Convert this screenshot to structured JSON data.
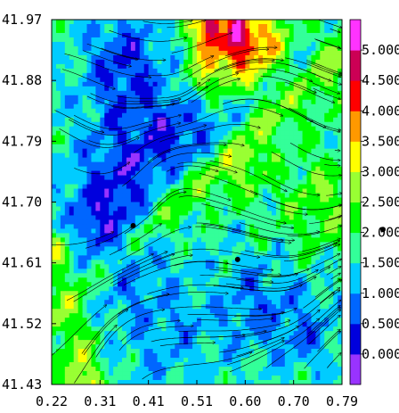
{
  "chart_data": {
    "type": "heatmap",
    "overlay": "streamlines",
    "title": "",
    "xlabel": "",
    "ylabel": "",
    "xlim": [
      0.22,
      0.79
    ],
    "ylim": [
      41.43,
      41.97
    ],
    "x_ticks": [
      "0.22",
      "0.31",
      "0.41",
      "0.51",
      "0.60",
      "0.70",
      "0.79"
    ],
    "y_ticks": [
      "41.97",
      "41.88",
      "41.79",
      "41.70",
      "41.61",
      "41.52",
      "41.43"
    ],
    "colorbar": {
      "range": [
        -0.5,
        5.5
      ],
      "labels": [
        "0.000",
        "0.500",
        "1.000",
        "1.500",
        "2.000",
        "2.500",
        "3.000",
        "3.500",
        "4.000",
        "4.500",
        "5.000"
      ],
      "colors": [
        "#9933ff",
        "#0000dd",
        "#0066ff",
        "#00ccff",
        "#33ff99",
        "#00ff00",
        "#99ff33",
        "#ffff00",
        "#ff9900",
        "#ff0000",
        "#cc0055",
        "#ff33ff"
      ]
    },
    "markers": [
      {
        "x": 0.38,
        "y": 41.665,
        "label": ""
      },
      {
        "x": 0.585,
        "y": 41.615,
        "label": ""
      }
    ],
    "colorbar_marker_value": 2.05
  }
}
